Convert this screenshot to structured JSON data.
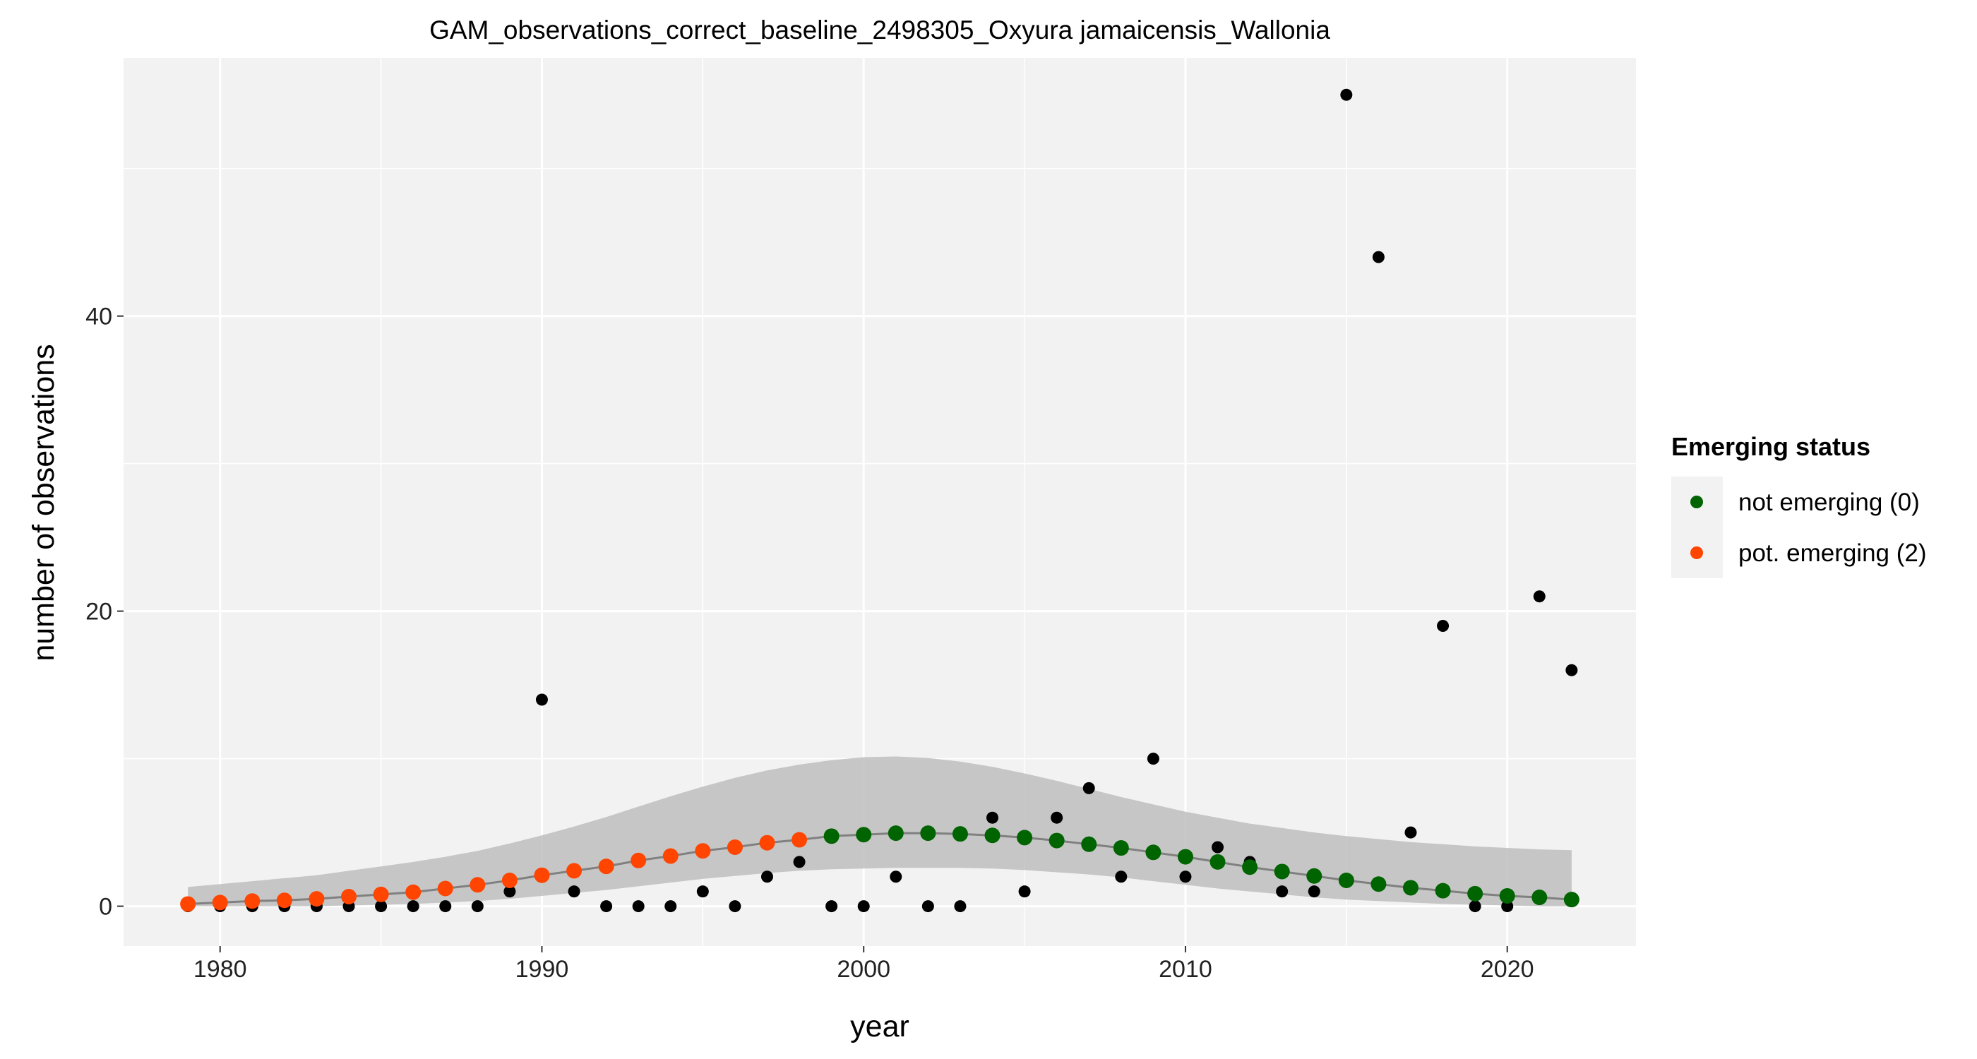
{
  "chart_data": {
    "type": "scatter",
    "title": "GAM_observations_correct_baseline_2498305_Oxyura jamaicensis_Wallonia",
    "xlabel": "year",
    "ylabel": "number of observations",
    "xlim": [
      1977,
      2024
    ],
    "ylim": [
      -2.7,
      57.5
    ],
    "x_ticks": [
      1980,
      1990,
      2000,
      2010,
      2020
    ],
    "y_ticks": [
      0,
      20,
      40
    ],
    "grid": true,
    "legend": {
      "title": "Emerging status",
      "placement": "right",
      "entries": [
        {
          "label": "not emerging (0)",
          "color": "#006400"
        },
        {
          "label": "pot. emerging (2)",
          "color": "#FF4500"
        }
      ]
    },
    "colors": {
      "observed": "#000000",
      "not_emerging": "#006400",
      "pot_emerging": "#FF4500",
      "ribbon": "#BEBEBE",
      "fit_line": "#808080",
      "panel": "#F2F2F2",
      "grid": "#FFFFFF"
    },
    "observed": {
      "x": [
        1979,
        1980,
        1981,
        1982,
        1983,
        1984,
        1985,
        1986,
        1987,
        1988,
        1989,
        1990,
        1991,
        1992,
        1993,
        1994,
        1995,
        1996,
        1997,
        1998,
        1999,
        2000,
        2001,
        2002,
        2003,
        2004,
        2005,
        2006,
        2007,
        2008,
        2009,
        2010,
        2011,
        2012,
        2013,
        2014,
        2015,
        2016,
        2017,
        2018,
        2019,
        2020,
        2021,
        2022
      ],
      "y": [
        0,
        0,
        0,
        0,
        0,
        0,
        0,
        0,
        0,
        0,
        1,
        14,
        1,
        0,
        0,
        0,
        1,
        0,
        2,
        3,
        0,
        0,
        2,
        0,
        0,
        6,
        1,
        6,
        8,
        2,
        10,
        2,
        4,
        3,
        1,
        1,
        55,
        44,
        5,
        19,
        0,
        0,
        21,
        16
      ]
    },
    "fitted": {
      "x": [
        1979,
        1980,
        1981,
        1982,
        1983,
        1984,
        1985,
        1986,
        1987,
        1988,
        1989,
        1990,
        1991,
        1992,
        1993,
        1994,
        1995,
        1996,
        1997,
        1998,
        1999,
        2000,
        2001,
        2002,
        2003,
        2004,
        2005,
        2006,
        2007,
        2008,
        2009,
        2010,
        2011,
        2012,
        2013,
        2014,
        2015,
        2016,
        2017,
        2018,
        2019,
        2020,
        2021,
        2022
      ],
      "y": [
        0.15,
        0.25,
        0.35,
        0.4,
        0.5,
        0.65,
        0.8,
        0.95,
        1.2,
        1.45,
        1.75,
        2.1,
        2.4,
        2.7,
        3.1,
        3.4,
        3.75,
        4.0,
        4.3,
        4.5,
        4.75,
        4.85,
        4.95,
        4.95,
        4.9,
        4.8,
        4.65,
        4.45,
        4.2,
        3.95,
        3.65,
        3.35,
        3.0,
        2.65,
        2.35,
        2.05,
        1.75,
        1.5,
        1.25,
        1.05,
        0.85,
        0.7,
        0.6,
        0.45
      ],
      "status": [
        2,
        2,
        2,
        2,
        2,
        2,
        2,
        2,
        2,
        2,
        2,
        2,
        2,
        2,
        2,
        2,
        2,
        2,
        2,
        2,
        0,
        0,
        0,
        0,
        0,
        0,
        0,
        0,
        0,
        0,
        0,
        0,
        0,
        0,
        0,
        0,
        0,
        0,
        0,
        0,
        0,
        0,
        0,
        0
      ],
      "lower": [
        0.0,
        0.0,
        0.0,
        0.0,
        0.0,
        0.05,
        0.1,
        0.15,
        0.25,
        0.35,
        0.5,
        0.7,
        0.9,
        1.1,
        1.35,
        1.6,
        1.85,
        2.05,
        2.25,
        2.4,
        2.5,
        2.55,
        2.6,
        2.6,
        2.6,
        2.55,
        2.45,
        2.3,
        2.15,
        1.95,
        1.7,
        1.45,
        1.2,
        1.0,
        0.8,
        0.6,
        0.45,
        0.35,
        0.25,
        0.15,
        0.1,
        0.05,
        0.0,
        0.0
      ],
      "upper": [
        1.3,
        1.5,
        1.7,
        1.9,
        2.1,
        2.4,
        2.7,
        3.0,
        3.35,
        3.75,
        4.25,
        4.8,
        5.4,
        6.05,
        6.75,
        7.45,
        8.1,
        8.7,
        9.2,
        9.6,
        9.9,
        10.1,
        10.15,
        10.05,
        9.8,
        9.45,
        9.0,
        8.5,
        7.95,
        7.4,
        6.9,
        6.4,
        6.0,
        5.6,
        5.3,
        5.0,
        4.75,
        4.55,
        4.35,
        4.2,
        4.05,
        3.95,
        3.85,
        3.8
      ]
    }
  }
}
